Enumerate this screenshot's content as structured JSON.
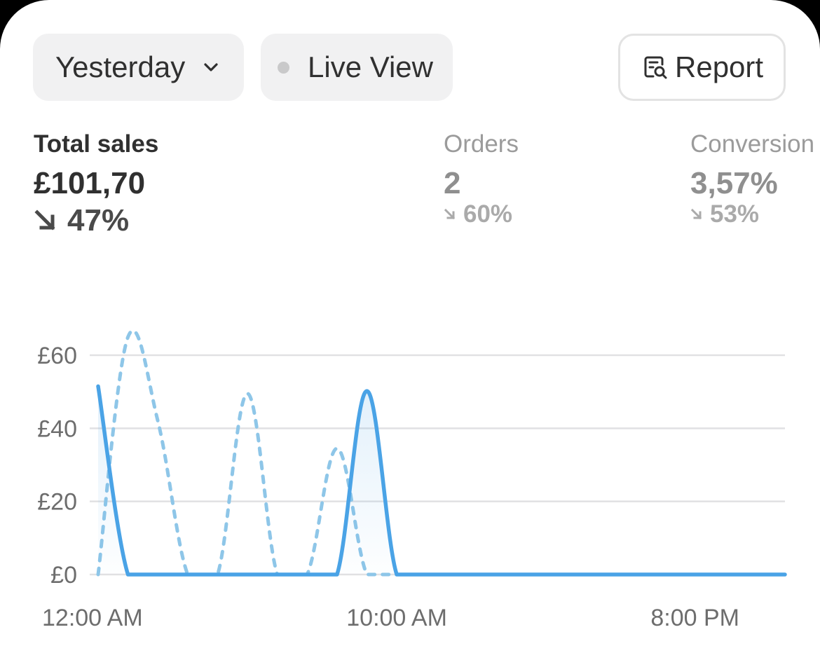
{
  "filters": {
    "date_label": "Yesterday",
    "live_label": "Live View",
    "report_label": "Report"
  },
  "metrics": {
    "total_sales": {
      "label": "Total sales",
      "value": "£101,70",
      "change": "47%"
    },
    "orders": {
      "label": "Orders",
      "value": "2",
      "change": "60%"
    },
    "conversion": {
      "label": "Conversion",
      "value": "3,57%",
      "change": "53%"
    }
  },
  "icons": {
    "date_dropdown": "chevron-down-icon",
    "live_status": "dot-icon",
    "report": "report-search-icon",
    "change_direction": "arrow-down-right-icon"
  },
  "colors": {
    "current_series": "#4aa3e6",
    "comparison_series": "#8ec6e8",
    "primary_text": "#303030",
    "muted_text": "#9b9b9b",
    "pill_background": "#f1f1f2"
  },
  "chart_data": {
    "type": "line",
    "x_domain": [
      "12:00 AM",
      "11:59 PM"
    ],
    "x_ticks": [
      {
        "label": "12:00 AM",
        "hour": 0
      },
      {
        "label": "10:00 AM",
        "hour": 10
      },
      {
        "label": "8:00 PM",
        "hour": 20
      }
    ],
    "y_ticks": [
      {
        "label": "£0",
        "value": 0
      },
      {
        "label": "£20",
        "value": 20
      },
      {
        "label": "£40",
        "value": 40
      },
      {
        "label": "£60",
        "value": 60
      }
    ],
    "ylim": [
      0,
      60
    ],
    "xlim": [
      0,
      23
    ],
    "grid": true,
    "series": [
      {
        "style": "solid",
        "color": "#4aa3e6",
        "x": [
          0,
          1,
          2,
          3,
          4,
          5,
          6,
          7,
          8,
          9,
          10,
          11,
          12,
          13,
          14,
          15,
          16,
          17,
          18,
          19,
          20,
          21,
          22,
          23
        ],
        "values": [
          51.5,
          0,
          0,
          0,
          0,
          0,
          0,
          0,
          0,
          50.2,
          0,
          0,
          0,
          0,
          0,
          0,
          0,
          0,
          0,
          0,
          0,
          0,
          0,
          0
        ]
      },
      {
        "style": "dashed",
        "color": "#8ec6e8",
        "x": [
          0,
          1,
          2,
          3,
          4,
          5,
          6,
          7,
          8,
          9,
          10
        ],
        "values": [
          0,
          65,
          42,
          0,
          0,
          49.5,
          0,
          0,
          34.5,
          0,
          0
        ]
      }
    ]
  }
}
